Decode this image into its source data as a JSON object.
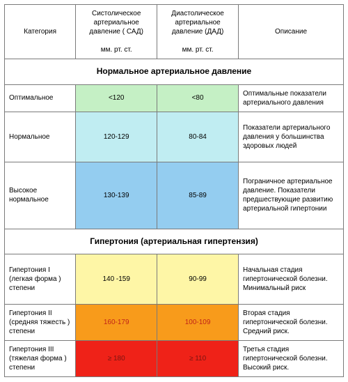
{
  "headers": {
    "category": "Категория",
    "sbp": "Систолическое артериальное давление ( САД)",
    "dbp": "Диастолическое артериальное давление (ДАД)",
    "unit": "мм. рт. ст.",
    "desc": "Описание"
  },
  "sections": {
    "normal": "Нормальное артериальное давление",
    "hyper": "Гипертония (артериальная гипертензия)"
  },
  "rows": {
    "optimal": {
      "cat": "Оптимальное",
      "sbp": "<120",
      "dbp": "<80",
      "desc": "Оптимальные показатели артериального давления",
      "color": "#c5f0c5"
    },
    "normal": {
      "cat": "Нормальное",
      "sbp": "120-129",
      "dbp": "80-84",
      "desc": "Показатели артериального давления у большинства здоровых людей",
      "color": "#c0edf2"
    },
    "highnorm": {
      "cat": "Высокое нормальное",
      "sbp": "130-139",
      "dbp": "85-89",
      "desc": "Пограничное артериальное давление. Показатели предшествующие развитию артериальной гипертонии",
      "color": "#94cdf0"
    },
    "h1": {
      "cat": "Гипертония I (легкая форма ) степени",
      "sbp": "140 -159",
      "dbp": "90-99",
      "desc": "Начальная стадия гипертонической болезни. Минимальный риск",
      "color": "#fef6a6"
    },
    "h2": {
      "cat": "Гипертония II (средняя тяжесть ) степени",
      "sbp": "160-179",
      "dbp": "100-109",
      "desc": "Вторая стадия гипертонической болезни. Средний риск.",
      "color": "#f89b1b",
      "textcolor": "#c02418"
    },
    "h3": {
      "cat": "Гипертония III (тяжелая форма ) степени",
      "sbp": "≥ 180",
      "dbp": "≥ 110",
      "desc": "Третья стадия гипертонической болезни. Высокий риск.",
      "color": "#ef2218",
      "textcolor": "#7a1410"
    }
  },
  "colors": {
    "border": "#7a7a7a",
    "background": "#ffffff"
  },
  "fontsizes": {
    "header": 10,
    "section": 12,
    "cell": 10
  }
}
